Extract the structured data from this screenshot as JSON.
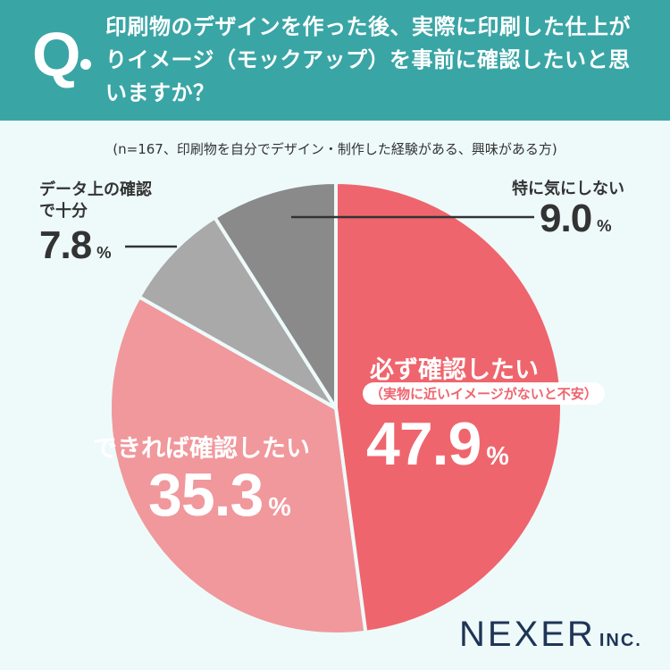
{
  "header": {
    "q_mark": "Q",
    "question": "印刷物のデザインを作った後、実際に印刷した仕上がりイメージ（モックアップ）を事前に確認したいと思いますか？"
  },
  "note": "(n=167、印刷物を自分でデザイン・制作した経験がある、興味がある方)",
  "chart_data": {
    "type": "pie",
    "title": "印刷物のデザインを作った後、実際に印刷した仕上がりイメージ（モックアップ）を事前に確認したいと思いますか？",
    "categories": [
      "必ず確認したい",
      "できれば確認したい",
      "データ上の確認で十分",
      "特に気にしない"
    ],
    "values": [
      47.9,
      35.3,
      7.8,
      9.0
    ],
    "unit": "%",
    "colors": [
      "#ef656d",
      "#f0989c",
      "#a9a9a9",
      "#8a8a8a"
    ],
    "start": "12 o'clock, clockwise"
  },
  "labels": {
    "must_title": "必ず確認したい",
    "must_sub": "（実物に近いイメージがないと不安）",
    "must_value": "47.9",
    "prefer_title": "できれば確認したい",
    "prefer_value": "35.3",
    "data_title_1": "データ上の確認",
    "data_title_2": "で十分",
    "data_value": "7.8",
    "none_title": "特に気にしない",
    "none_value": "9.0",
    "pct_sign": "%"
  },
  "logo": {
    "name": "NEXER",
    "suffix": "INC."
  }
}
